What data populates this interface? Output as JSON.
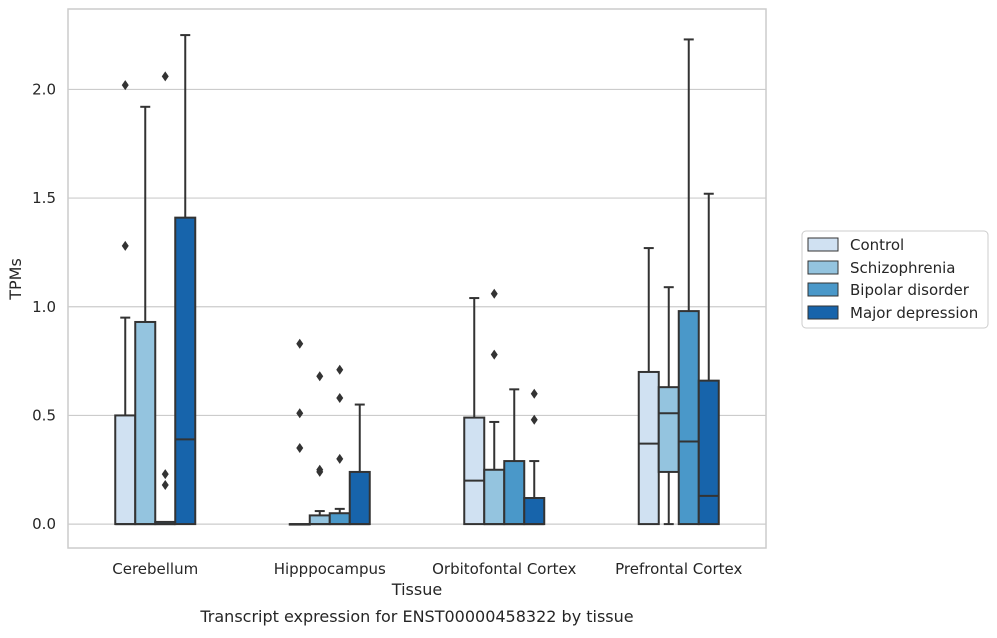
{
  "caption": "Transcript expression for ENST00000458322 by tissue",
  "colors": {
    "grid": "#cccccc",
    "frame": "#cccccc",
    "line": "#333333",
    "series": [
      "#d0e1f2",
      "#94c4df",
      "#4a98c9",
      "#1764ab"
    ]
  },
  "chart_data": {
    "type": "box",
    "title": "",
    "xlabel": "Tissue",
    "ylabel": "TPMs",
    "ylim": [
      -0.11,
      2.37
    ],
    "yticks": [
      0.0,
      0.5,
      1.0,
      1.5,
      2.0
    ],
    "ytick_labels": [
      "0.0",
      "0.5",
      "1.0",
      "1.5",
      "2.0"
    ],
    "grid": "horizontal",
    "legend_position": "right",
    "categories": [
      "Cerebellum",
      "Hipppocampus",
      "Orbitofontal Cortex",
      "Prefrontal Cortex"
    ],
    "series": [
      {
        "name": "Control",
        "boxes": [
          {
            "q1": 0.0,
            "median": 0.0,
            "q3": 0.5,
            "whislo": 0.0,
            "whishi": 0.95,
            "fliers": [
              1.28,
              2.02
            ]
          },
          {
            "q1": 0.0,
            "median": 0.0,
            "q3": 0.0,
            "whislo": 0.0,
            "whishi": 0.0,
            "fliers": [
              0.35,
              0.51,
              0.83
            ]
          },
          {
            "q1": 0.0,
            "median": 0.2,
            "q3": 0.49,
            "whislo": 0.0,
            "whishi": 1.04,
            "fliers": []
          },
          {
            "q1": 0.0,
            "median": 0.37,
            "q3": 0.7,
            "whislo": 0.0,
            "whishi": 1.27,
            "fliers": []
          }
        ]
      },
      {
        "name": "Schizophrenia",
        "boxes": [
          {
            "q1": 0.0,
            "median": 0.0,
            "q3": 0.93,
            "whislo": 0.0,
            "whishi": 1.92,
            "fliers": []
          },
          {
            "q1": 0.0,
            "median": 0.0,
            "q3": 0.04,
            "whislo": 0.0,
            "whishi": 0.06,
            "fliers": [
              0.24,
              0.25,
              0.68
            ]
          },
          {
            "q1": 0.0,
            "median": 0.0,
            "q3": 0.25,
            "whislo": 0.0,
            "whishi": 0.47,
            "fliers": [
              0.78,
              1.06
            ]
          },
          {
            "q1": 0.24,
            "median": 0.51,
            "q3": 0.63,
            "whislo": 0.0,
            "whishi": 1.09,
            "fliers": []
          }
        ]
      },
      {
        "name": "Bipolar disorder",
        "boxes": [
          {
            "q1": 0.0,
            "median": 0.0,
            "q3": 0.01,
            "whislo": 0.0,
            "whishi": 0.01,
            "fliers": [
              0.18,
              0.23,
              2.06
            ]
          },
          {
            "q1": 0.0,
            "median": 0.0,
            "q3": 0.05,
            "whislo": 0.0,
            "whishi": 0.07,
            "fliers": [
              0.3,
              0.58,
              0.71
            ]
          },
          {
            "q1": 0.0,
            "median": 0.0,
            "q3": 0.29,
            "whislo": 0.0,
            "whishi": 0.62,
            "fliers": []
          },
          {
            "q1": 0.0,
            "median": 0.38,
            "q3": 0.98,
            "whislo": 0.0,
            "whishi": 2.23,
            "fliers": []
          }
        ]
      },
      {
        "name": "Major depression",
        "boxes": [
          {
            "q1": 0.0,
            "median": 0.39,
            "q3": 1.41,
            "whislo": 0.0,
            "whishi": 2.25,
            "fliers": []
          },
          {
            "q1": 0.0,
            "median": 0.0,
            "q3": 0.24,
            "whislo": 0.0,
            "whishi": 0.55,
            "fliers": []
          },
          {
            "q1": 0.0,
            "median": 0.0,
            "q3": 0.12,
            "whislo": 0.0,
            "whishi": 0.29,
            "fliers": [
              0.48,
              0.6
            ]
          },
          {
            "q1": 0.0,
            "median": 0.13,
            "q3": 0.66,
            "whislo": 0.0,
            "whishi": 1.52,
            "fliers": []
          }
        ]
      }
    ]
  }
}
